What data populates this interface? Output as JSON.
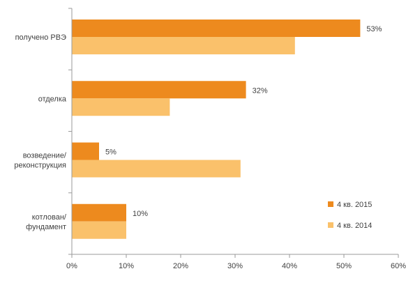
{
  "chart_data": {
    "type": "bar",
    "orientation": "horizontal",
    "categories": [
      "получено РВЭ",
      "отделка",
      "возведение/ реконструкция",
      "котлован/ фундамент"
    ],
    "category_lines": [
      [
        "получено РВЭ"
      ],
      [
        "отделка"
      ],
      [
        "возведение/",
        "реконструкция"
      ],
      [
        "котлован/",
        "фундамент"
      ]
    ],
    "series": [
      {
        "name": "4 кв. 2015",
        "values": [
          53,
          32,
          5,
          10
        ],
        "color": "#ED8A1E",
        "data_labels": [
          "53%",
          "32%",
          "5%",
          "10%"
        ]
      },
      {
        "name": "4 кв. 2014",
        "values": [
          41,
          18,
          31,
          10
        ],
        "color": "#FAC16B"
      }
    ],
    "xlim": [
      0,
      60
    ],
    "xticks": [
      "0%",
      "10%",
      "20%",
      "30%",
      "40%",
      "50%",
      "60%"
    ],
    "grid": false,
    "legend_position": "bottom-right"
  }
}
